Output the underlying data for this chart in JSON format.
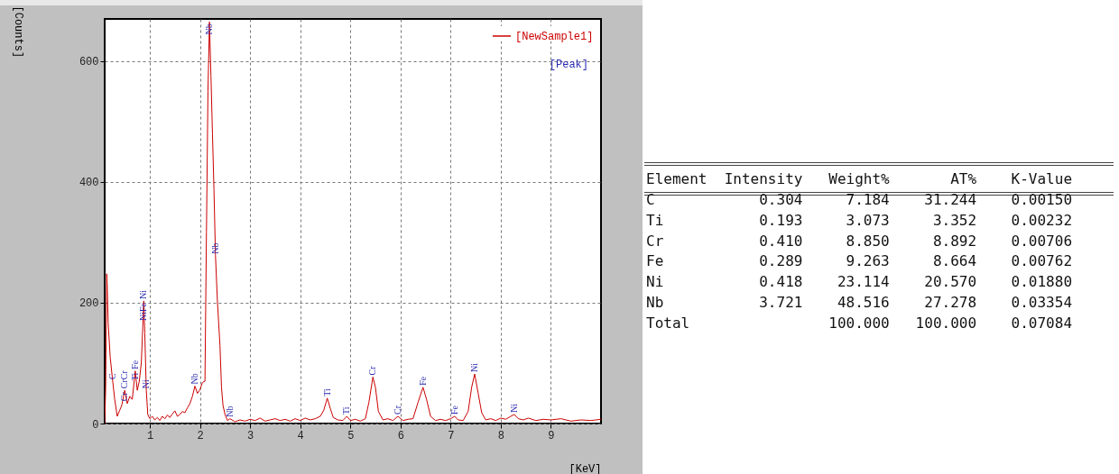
{
  "chart_data": [
    {
      "type": "line",
      "xlabel": "[KeV]",
      "ylabel": "[Counts]",
      "xlim": [
        0.1,
        10
      ],
      "xticks": [
        1,
        2,
        3,
        4,
        5,
        6,
        7,
        8,
        9
      ],
      "ylim": [
        0,
        670
      ],
      "yticks": [
        0,
        200,
        400,
        600
      ],
      "grid": true,
      "legend": "top right",
      "x": [
        0.1,
        0.12,
        0.14,
        0.15,
        0.17,
        0.21,
        0.26,
        0.3,
        0.35,
        0.4,
        0.44,
        0.5,
        0.55,
        0.6,
        0.65,
        0.71,
        0.75,
        0.79,
        0.83,
        0.86,
        0.88,
        0.9,
        0.93,
        0.96,
        1.0,
        1.05,
        1.1,
        1.15,
        1.2,
        1.25,
        1.3,
        1.35,
        1.4,
        1.45,
        1.5,
        1.55,
        1.6,
        1.65,
        1.7,
        1.75,
        1.8,
        1.85,
        1.9,
        1.95,
        2.0,
        2.05,
        2.1,
        2.13,
        2.16,
        2.19,
        2.22,
        2.25,
        2.28,
        2.31,
        2.35,
        2.4,
        2.43,
        2.46,
        2.5,
        2.55,
        2.6,
        2.7,
        2.8,
        2.9,
        3.0,
        3.1,
        3.2,
        3.3,
        3.4,
        3.5,
        3.6,
        3.7,
        3.8,
        3.9,
        4.0,
        4.1,
        4.2,
        4.3,
        4.4,
        4.47,
        4.54,
        4.6,
        4.66,
        4.75,
        4.85,
        4.93,
        5.0,
        5.1,
        5.2,
        5.3,
        5.37,
        5.45,
        5.5,
        5.56,
        5.65,
        5.75,
        5.85,
        5.95,
        6.05,
        6.15,
        6.25,
        6.35,
        6.45,
        6.52,
        6.6,
        6.7,
        6.8,
        6.9,
        7.0,
        7.08,
        7.15,
        7.25,
        7.35,
        7.42,
        7.48,
        7.55,
        7.62,
        7.7,
        7.8,
        7.9,
        8.0,
        8.1,
        8.2,
        8.27,
        8.35,
        8.45,
        8.55,
        8.7,
        8.85,
        9.0,
        9.2,
        9.4,
        9.6,
        9.8,
        10.0
      ],
      "series": [
        {
          "name": "[NewSample1]",
          "color": "#cc0000",
          "values": [
            0,
            60,
            248,
            230,
            166,
            110,
            70,
            40,
            12,
            22,
            30,
            55,
            33,
            45,
            40,
            87,
            55,
            70,
            100,
            160,
            203,
            150,
            55,
            15,
            8,
            12,
            6,
            10,
            5,
            12,
            8,
            14,
            10,
            16,
            21,
            12,
            15,
            20,
            18,
            26,
            33,
            45,
            62,
            50,
            56,
            68,
            70,
            317,
            550,
            665,
            575,
            480,
            387,
            278,
            200,
            129,
            60,
            30,
            15,
            5,
            8,
            3,
            6,
            4,
            7,
            5,
            9,
            4,
            6,
            8,
            5,
            7,
            4,
            8,
            5,
            9,
            6,
            8,
            12,
            22,
            42,
            25,
            10,
            6,
            5,
            12,
            5,
            7,
            4,
            8,
            35,
            77,
            60,
            20,
            6,
            8,
            5,
            12,
            5,
            7,
            8,
            35,
            60,
            40,
            12,
            5,
            7,
            5,
            8,
            12,
            6,
            5,
            20,
            60,
            82,
            50,
            18,
            6,
            8,
            5,
            9,
            7,
            12,
            15,
            8,
            6,
            9,
            5,
            7,
            6,
            8,
            4,
            6,
            5,
            7
          ]
        }
      ],
      "annotations": [
        "[Peak]",
        {
          "text": "C",
          "x": 0.26,
          "y": 70
        },
        {
          "text": "CrCr",
          "x": 0.5,
          "y": 55
        },
        {
          "text": "Cr",
          "x": 0.5,
          "y": 55
        },
        {
          "text": "Fe",
          "x": 0.71,
          "y": 87
        },
        {
          "text": "Ti",
          "x": 0.71,
          "y": 87
        },
        {
          "text": "Ni",
          "x": 0.88,
          "y": 203
        },
        {
          "text": "NiFe",
          "x": 0.88,
          "y": 203
        },
        {
          "text": "Ni",
          "x": 0.93,
          "y": 55
        },
        {
          "text": "Nb",
          "x": 1.9,
          "y": 62
        },
        {
          "text": "Nb",
          "x": 2.19,
          "y": 665
        },
        {
          "text": "Nb",
          "x": 2.31,
          "y": 278
        },
        {
          "text": "Nb",
          "x": 2.6,
          "y": 8
        },
        {
          "text": "Ti",
          "x": 4.54,
          "y": 42
        },
        {
          "text": "Ti",
          "x": 4.93,
          "y": 12
        },
        {
          "text": "Cr",
          "x": 5.45,
          "y": 77
        },
        {
          "text": "Cr",
          "x": 5.95,
          "y": 12
        },
        {
          "text": "Fe",
          "x": 6.45,
          "y": 60
        },
        {
          "text": "Fe",
          "x": 7.08,
          "y": 12
        },
        {
          "text": "Ni",
          "x": 7.48,
          "y": 82
        },
        {
          "text": "Ni",
          "x": 8.27,
          "y": 15
        }
      ]
    },
    {
      "type": "other",
      "annotations": [
        "Element  Intensity   Weight%       AT%    K-Value",
        "C            0.304     7.184    31.244    0.00150",
        "Ti           0.193     3.073     3.352    0.00232",
        "Cr           0.410     8.850     8.892    0.00706",
        "Fe           0.289     9.263     8.664    0.00762",
        "Ni           0.418    23.114    20.570    0.01880",
        "Nb           3.721    48.516    27.278    0.03354",
        "Total                100.000   100.000    0.07084"
      ]
    }
  ]
}
